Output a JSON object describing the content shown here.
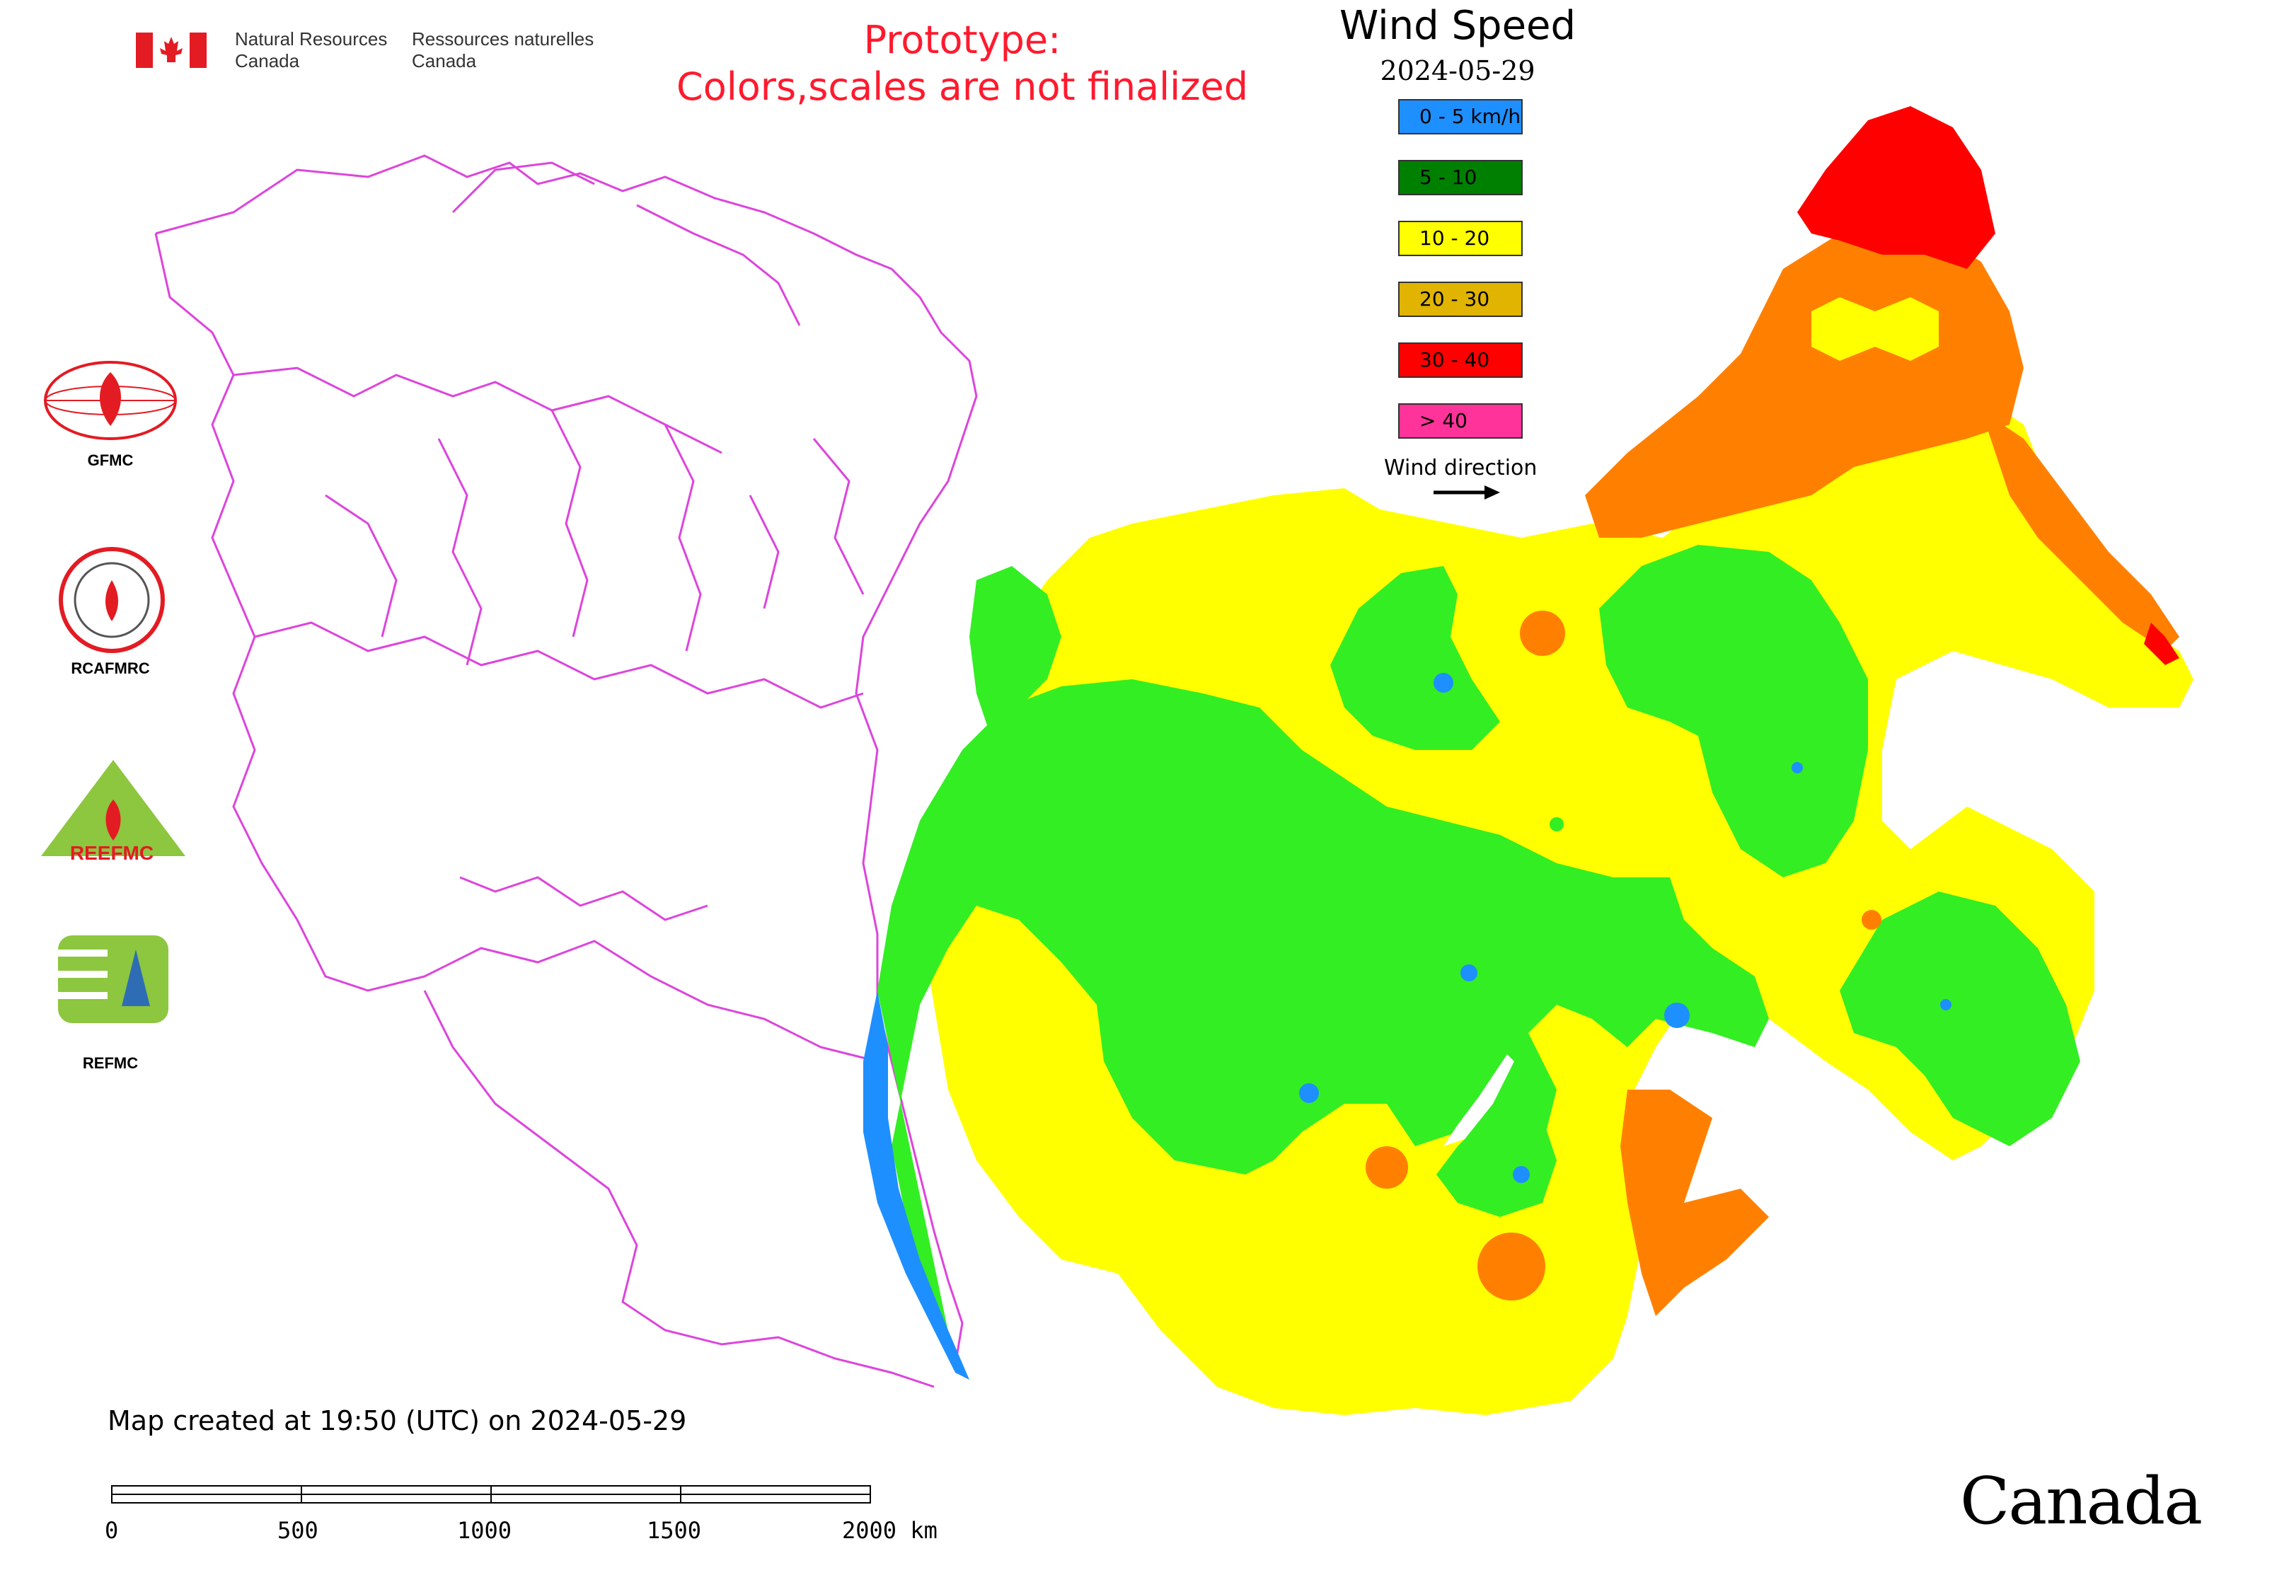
{
  "header": {
    "org_en_line1": "Natural Resources",
    "org_en_line2": "Canada",
    "org_fr_line1": "Ressources naturelles",
    "org_fr_line2": "Canada"
  },
  "notice": {
    "line1": "Prototype:",
    "line2": "Colors,scales are not finalized"
  },
  "legend": {
    "title": "Wind Speed",
    "date": "2024-05-29",
    "items": [
      {
        "label": "0 - 5 km/h",
        "color": "#1e8fff"
      },
      {
        "label": "5 - 10",
        "color": "#008000"
      },
      {
        "label": "10 - 20",
        "color": "#ffff00"
      },
      {
        "label": "20 - 30",
        "color": "#e0b400"
      },
      {
        "label": "30 - 40",
        "color": "#ff0000"
      },
      {
        "label": "> 40",
        "color": "#ff3399"
      }
    ],
    "wind_direction_label": "Wind direction"
  },
  "map_colors": {
    "calm": "#1e8fff",
    "light": "#33ee22",
    "moderate": "#ffff00",
    "fresh": "#ff8000",
    "strong": "#ff0000",
    "borders": "#dd44dd"
  },
  "logos": [
    {
      "name": "GFMC",
      "label": "GFMC"
    },
    {
      "name": "RCAFMRC",
      "label": "RCAFMRC"
    },
    {
      "name": "REEFMC",
      "label": "REEFMC"
    },
    {
      "name": "REFMC",
      "label": "REFMC"
    }
  ],
  "footer": {
    "created": "Map created at 19:50 (UTC) on 2024-05-29",
    "scale_ticks": [
      "0",
      "500",
      "1000",
      "1500",
      "2000 km"
    ],
    "wordmark": "Canada"
  }
}
